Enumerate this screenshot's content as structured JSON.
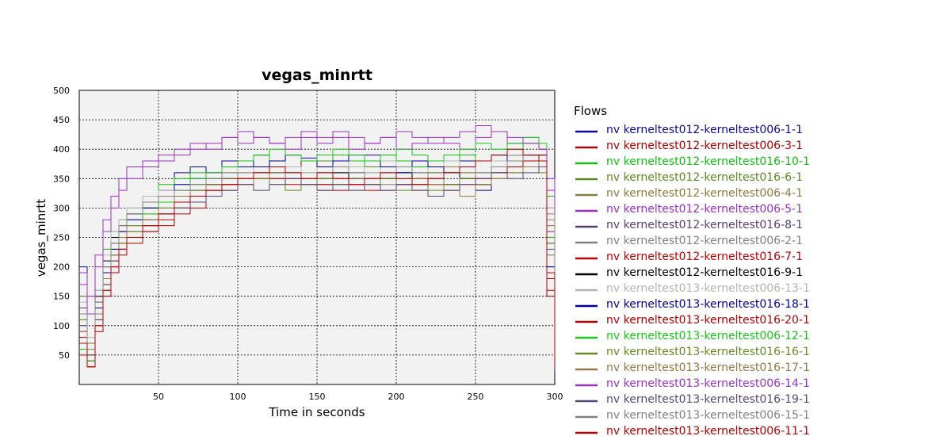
{
  "chart_data": {
    "type": "line",
    "title": "vegas_minrtt",
    "xlabel": "Time in seconds",
    "ylabel": "vegas_minrtt",
    "xlim": [
      0,
      300
    ],
    "ylim": [
      0,
      500
    ],
    "x_ticks": [
      50,
      100,
      150,
      200,
      250,
      300
    ],
    "y_ticks": [
      50,
      100,
      150,
      200,
      250,
      300,
      350,
      400,
      450,
      500
    ],
    "grid": true,
    "legend_title": "Flows",
    "legend_position": "right",
    "x": [
      0,
      5,
      10,
      15,
      20,
      25,
      30,
      40,
      50,
      60,
      70,
      80,
      90,
      100,
      110,
      120,
      130,
      140,
      150,
      160,
      170,
      180,
      190,
      200,
      210,
      220,
      230,
      240,
      250,
      260,
      270,
      280,
      290,
      295,
      300
    ],
    "series": [
      {
        "name": "nv kerneltest012-kerneltest006-1-1",
        "color": "#0a0a9c",
        "values": [
          200,
          60,
          140,
          200,
          240,
          260,
          290,
          310,
          330,
          360,
          370,
          360,
          380,
          370,
          390,
          380,
          370,
          385,
          360,
          380,
          370,
          390,
          380,
          360,
          380,
          370,
          360,
          380,
          330,
          380,
          390,
          380,
          370,
          200,
          20
        ]
      },
      {
        "name": "nv kerneltest012-kerneltest006-3-1",
        "color": "#b00000",
        "values": [
          90,
          40,
          120,
          180,
          210,
          240,
          250,
          270,
          290,
          310,
          320,
          340,
          350,
          360,
          370,
          380,
          370,
          380,
          370,
          380,
          360,
          380,
          370,
          380,
          370,
          380,
          360,
          370,
          380,
          370,
          390,
          390,
          380,
          150,
          60
        ]
      },
      {
        "name": "nv kerneltest012-kerneltest016-10-1",
        "color": "#10c010",
        "values": [
          60,
          50,
          160,
          230,
          260,
          280,
          300,
          320,
          340,
          350,
          360,
          350,
          370,
          380,
          390,
          380,
          390,
          380,
          370,
          390,
          380,
          370,
          390,
          380,
          370,
          360,
          380,
          390,
          380,
          390,
          400,
          410,
          400,
          250,
          40
        ]
      },
      {
        "name": "nv kerneltest012-kerneltest016-6-1",
        "color": "#5a8a1e",
        "values": [
          150,
          70,
          130,
          190,
          230,
          250,
          270,
          290,
          300,
          320,
          340,
          350,
          360,
          350,
          370,
          360,
          370,
          360,
          380,
          370,
          350,
          370,
          360,
          370,
          350,
          360,
          370,
          360,
          350,
          380,
          390,
          380,
          390,
          300,
          50
        ]
      },
      {
        "name": "nv kerneltest012-kerneltest006-4-1",
        "color": "#8c7a3c",
        "values": [
          110,
          40,
          110,
          170,
          210,
          240,
          260,
          280,
          300,
          310,
          330,
          340,
          350,
          360,
          350,
          370,
          360,
          350,
          360,
          370,
          360,
          350,
          370,
          360,
          350,
          360,
          370,
          360,
          350,
          370,
          380,
          390,
          380,
          220,
          30
        ]
      },
      {
        "name": "nv kerneltest012-kerneltest006-5-1",
        "color": "#9a30c8",
        "values": [
          190,
          150,
          220,
          280,
          320,
          350,
          370,
          380,
          390,
          400,
          410,
          400,
          420,
          410,
          420,
          410,
          400,
          420,
          410,
          420,
          400,
          410,
          420,
          400,
          410,
          420,
          410,
          400,
          420,
          430,
          410,
          420,
          400,
          350,
          80
        ]
      },
      {
        "name": "nv kerneltest012-kerneltest016-8-1",
        "color": "#5a3c6e",
        "values": [
          130,
          60,
          120,
          180,
          220,
          250,
          260,
          280,
          290,
          300,
          320,
          330,
          340,
          350,
          360,
          350,
          360,
          350,
          340,
          360,
          350,
          360,
          350,
          340,
          360,
          350,
          340,
          350,
          360,
          370,
          380,
          370,
          380,
          260,
          60
        ]
      },
      {
        "name": "nv kerneltest012-kerneltest006-2-1",
        "color": "#808080",
        "values": [
          100,
          50,
          140,
          200,
          240,
          260,
          280,
          300,
          320,
          330,
          340,
          350,
          340,
          350,
          360,
          370,
          350,
          360,
          350,
          340,
          360,
          350,
          340,
          350,
          360,
          350,
          340,
          350,
          360,
          370,
          360,
          370,
          380,
          280,
          70
        ]
      },
      {
        "name": "nv kerneltest012-kerneltest016-7-1",
        "color": "#c00000",
        "values": [
          80,
          30,
          100,
          160,
          200,
          230,
          250,
          260,
          270,
          290,
          300,
          320,
          330,
          340,
          350,
          360,
          350,
          340,
          330,
          350,
          340,
          330,
          350,
          340,
          330,
          320,
          340,
          350,
          340,
          360,
          370,
          380,
          370,
          180,
          40
        ]
      },
      {
        "name": "nv kerneltest012-kerneltest016-9-1",
        "color": "#000000",
        "values": [
          120,
          60,
          150,
          210,
          250,
          270,
          290,
          300,
          310,
          320,
          330,
          340,
          350,
          360,
          350,
          360,
          350,
          340,
          350,
          360,
          350,
          340,
          350,
          360,
          340,
          350,
          360,
          350,
          340,
          360,
          370,
          380,
          390,
          240,
          50
        ]
      },
      {
        "name": "nv kerneltest013-kerneltest006-13-1",
        "color": "#b4b4b4",
        "values": [
          140,
          80,
          160,
          220,
          260,
          280,
          300,
          320,
          330,
          340,
          350,
          360,
          370,
          360,
          370,
          380,
          370,
          360,
          370,
          380,
          370,
          360,
          380,
          370,
          360,
          370,
          380,
          370,
          360,
          380,
          390,
          380,
          370,
          300,
          90
        ]
      },
      {
        "name": "nv kerneltest013-kerneltest016-18-1",
        "color": "#0000a0",
        "values": [
          70,
          40,
          130,
          190,
          230,
          260,
          280,
          300,
          320,
          340,
          350,
          360,
          370,
          380,
          370,
          380,
          390,
          380,
          370,
          380,
          390,
          380,
          370,
          360,
          380,
          370,
          360,
          370,
          380,
          390,
          380,
          390,
          380,
          200,
          30
        ]
      },
      {
        "name": "nv kerneltest013-kerneltest016-20-1",
        "color": "#b40000",
        "values": [
          50,
          30,
          90,
          150,
          190,
          220,
          240,
          260,
          280,
          300,
          320,
          330,
          340,
          350,
          360,
          350,
          340,
          350,
          340,
          330,
          340,
          350,
          330,
          340,
          350,
          340,
          330,
          340,
          350,
          360,
          370,
          380,
          390,
          160,
          30
        ]
      },
      {
        "name": "nv kerneltest013-kerneltest006-12-1",
        "color": "#18c818",
        "values": [
          60,
          40,
          120,
          180,
          220,
          250,
          270,
          290,
          310,
          330,
          350,
          360,
          370,
          380,
          390,
          400,
          390,
          380,
          390,
          400,
          390,
          380,
          390,
          400,
          390,
          380,
          390,
          400,
          410,
          400,
          410,
          420,
          410,
          320,
          60
        ]
      },
      {
        "name": "nv kerneltest013-kerneltest016-16-1",
        "color": "#648c1e",
        "values": [
          110,
          50,
          110,
          170,
          210,
          240,
          260,
          270,
          290,
          300,
          310,
          320,
          330,
          340,
          350,
          340,
          330,
          340,
          350,
          340,
          330,
          340,
          350,
          330,
          340,
          330,
          340,
          350,
          340,
          350,
          360,
          370,
          360,
          240,
          50
        ]
      },
      {
        "name": "nv kerneltest013-kerneltest016-17-1",
        "color": "#967846",
        "values": [
          90,
          50,
          120,
          180,
          220,
          250,
          270,
          280,
          300,
          320,
          330,
          340,
          350,
          340,
          350,
          360,
          350,
          340,
          330,
          340,
          350,
          340,
          330,
          340,
          350,
          340,
          330,
          320,
          340,
          350,
          360,
          370,
          380,
          270,
          40
        ]
      },
      {
        "name": "nv kerneltest013-kerneltest006-14-1",
        "color": "#9b32c8",
        "values": [
          170,
          120,
          200,
          260,
          300,
          330,
          350,
          370,
          380,
          390,
          400,
          410,
          420,
          430,
          420,
          410,
          420,
          430,
          420,
          430,
          420,
          410,
          420,
          430,
          420,
          410,
          420,
          430,
          440,
          430,
          420,
          410,
          400,
          330,
          70
        ]
      },
      {
        "name": "nv kerneltest013-kerneltest016-19-1",
        "color": "#5a4678",
        "values": [
          100,
          50,
          110,
          170,
          210,
          230,
          250,
          270,
          290,
          300,
          310,
          320,
          330,
          340,
          330,
          340,
          350,
          340,
          330,
          340,
          330,
          340,
          330,
          340,
          330,
          320,
          330,
          340,
          350,
          360,
          350,
          360,
          370,
          230,
          40
        ]
      },
      {
        "name": "nv kerneltest013-kerneltest006-15-1",
        "color": "#828282",
        "values": [
          120,
          60,
          140,
          200,
          240,
          270,
          290,
          310,
          320,
          330,
          340,
          350,
          360,
          350,
          360,
          370,
          360,
          350,
          360,
          370,
          360,
          350,
          360,
          370,
          360,
          350,
          360,
          370,
          360,
          370,
          380,
          390,
          380,
          290,
          80
        ]
      },
      {
        "name": "nv kerneltest013-kerneltest006-11-1",
        "color": "#b90000",
        "values": [
          70,
          30,
          100,
          160,
          200,
          230,
          250,
          270,
          290,
          310,
          320,
          330,
          340,
          350,
          360,
          370,
          360,
          350,
          360,
          350,
          340,
          350,
          360,
          350,
          340,
          350,
          360,
          370,
          380,
          390,
          400,
          390,
          380,
          190,
          30
        ]
      }
    ]
  }
}
